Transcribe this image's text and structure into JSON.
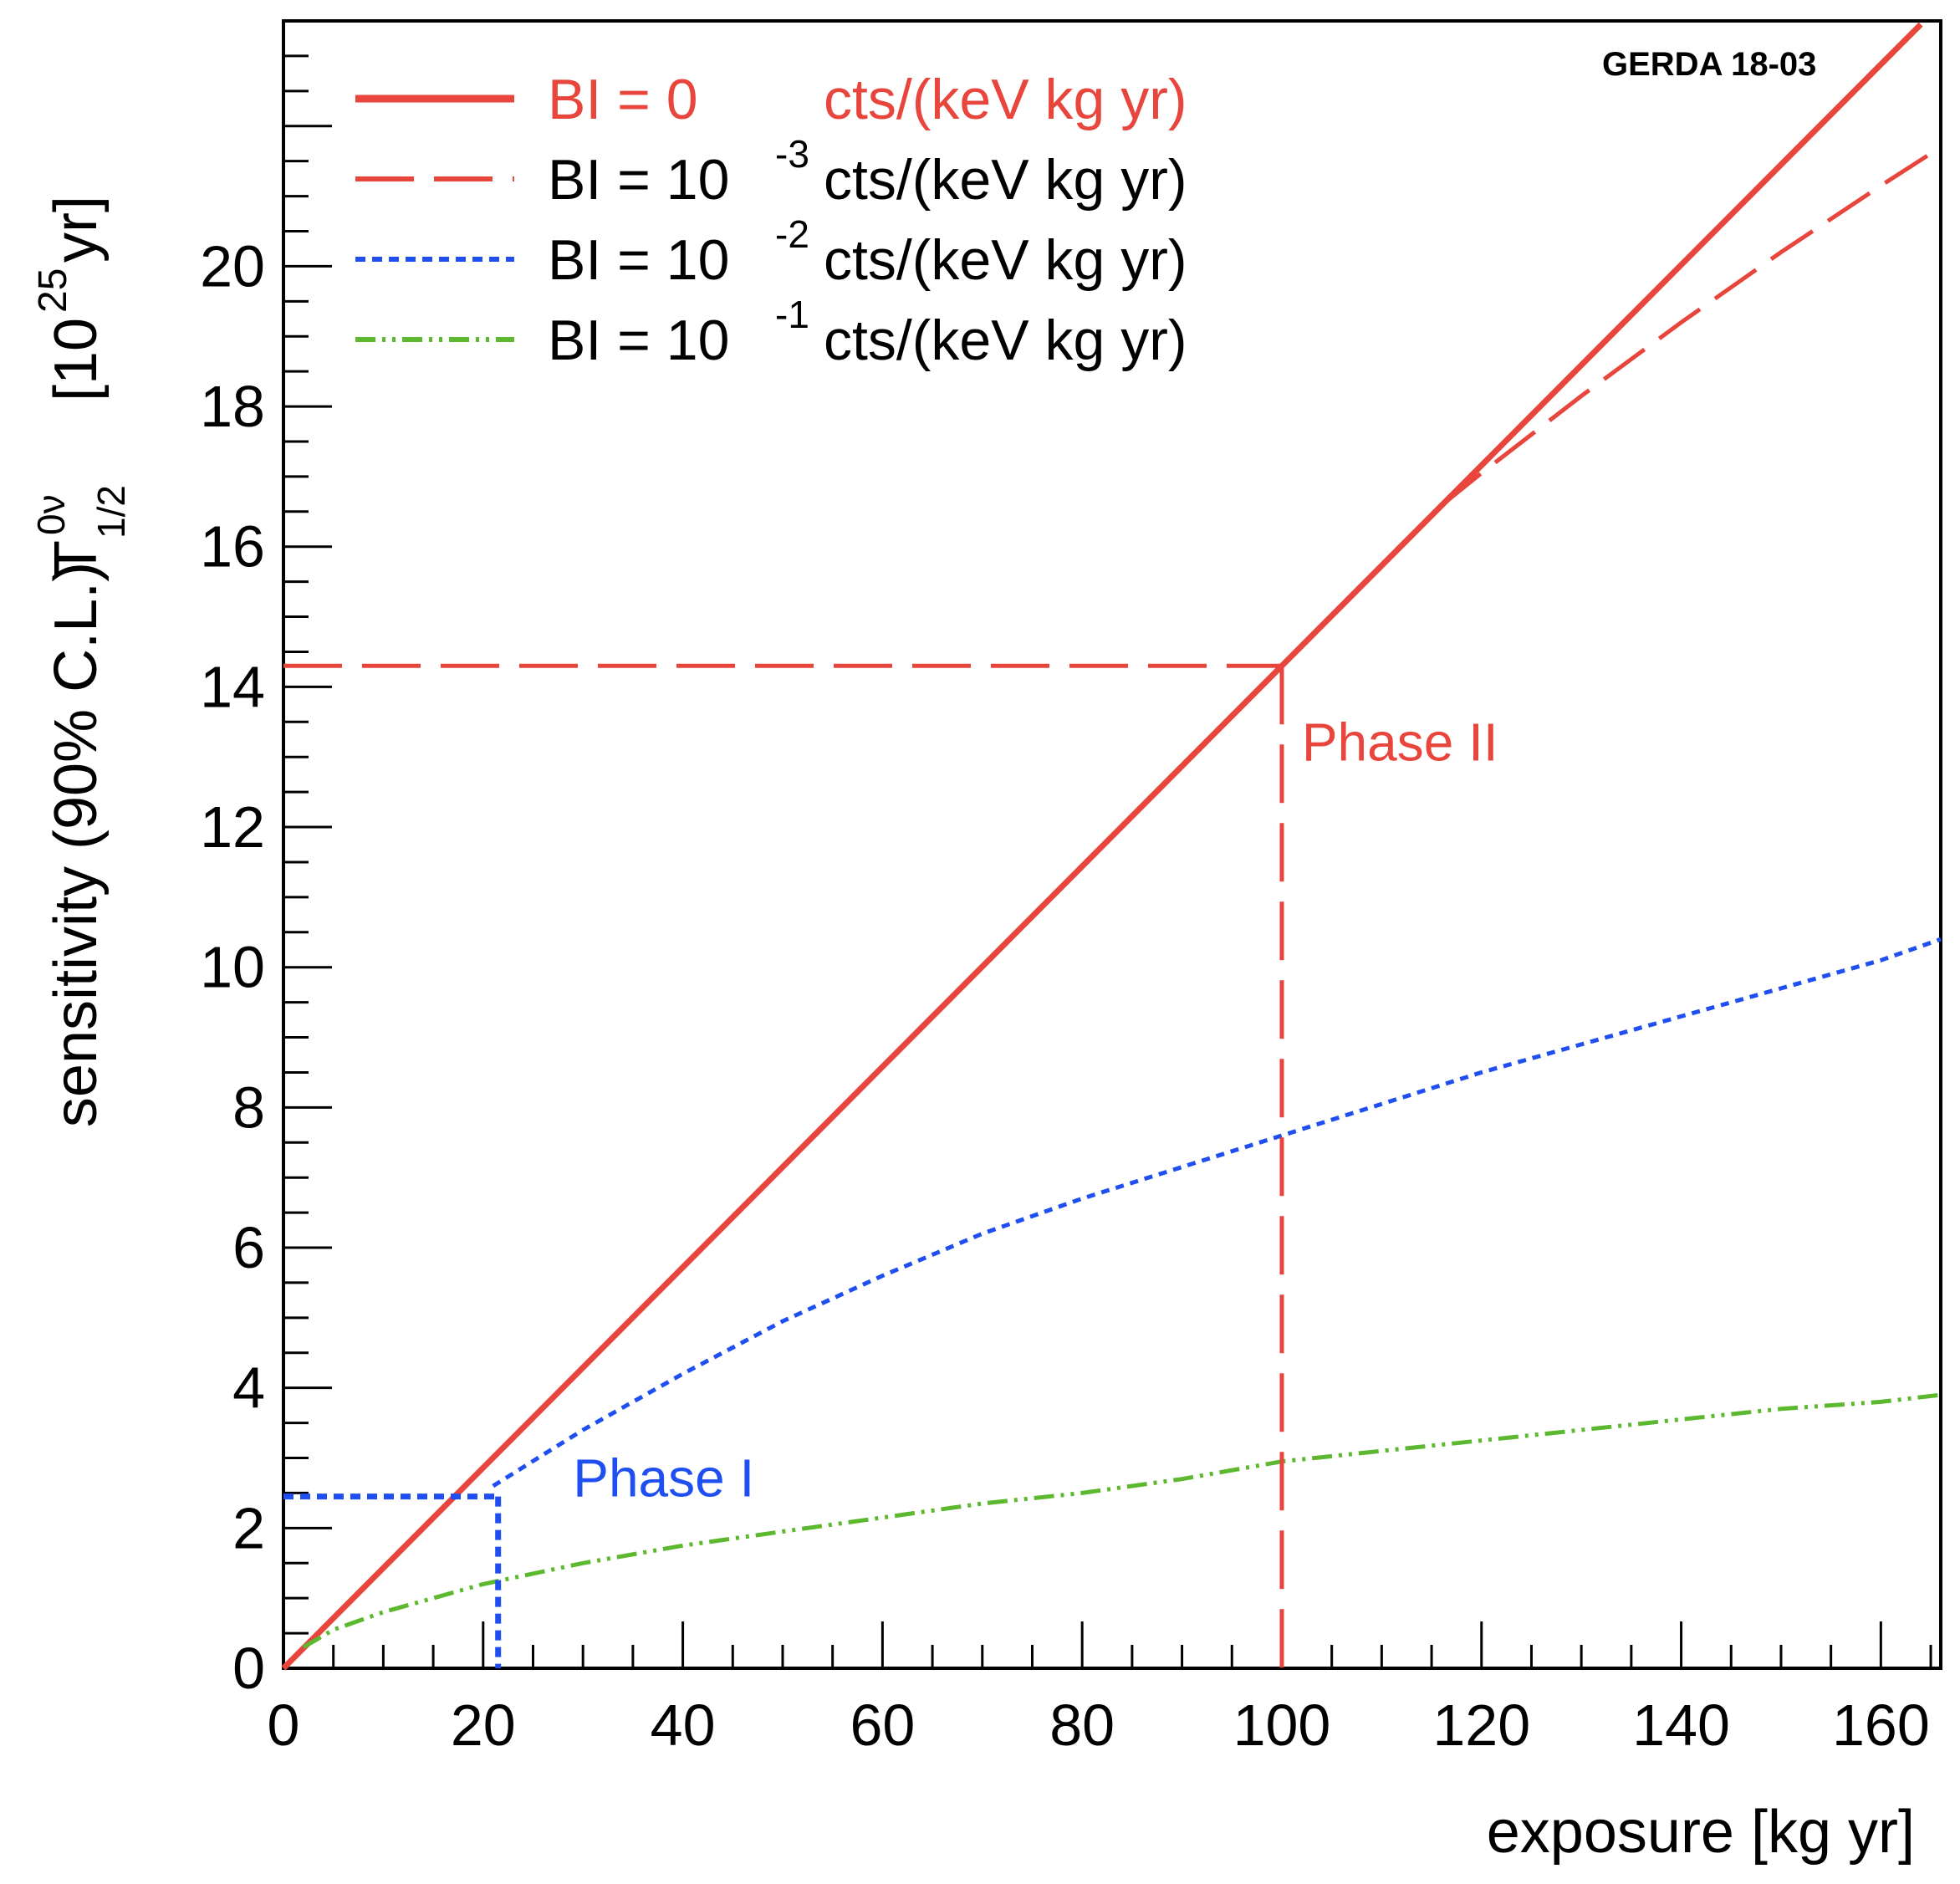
{
  "chart_data": {
    "type": "line",
    "tag": "GERDA 18-03",
    "xlabel": "exposure [kg yr]",
    "ylabel": {
      "main": "sensitivity (90% C.L.)",
      "symbol": "T",
      "superscript": "0ν",
      "subscript": "1/2",
      "unit": "[10",
      "unit_exp": "25",
      "unit_end": " yr]"
    },
    "xlim": [
      0,
      166
    ],
    "ylim": [
      0,
      23.5
    ],
    "x_ticks": [
      0,
      20,
      40,
      60,
      80,
      100,
      120,
      140,
      160
    ],
    "y_ticks": [
      0,
      2,
      4,
      6,
      8,
      10,
      12,
      14,
      16,
      18,
      20
    ],
    "x_tick_labels": [
      "0",
      "20",
      "40",
      "60",
      "80",
      "100",
      "120",
      "140",
      "160"
    ],
    "y_tick_labels": [
      "0",
      "2",
      "4",
      "6",
      "8",
      "10",
      "12",
      "14",
      "16",
      "18",
      "20"
    ],
    "series": [
      {
        "name": "BI = 0 cts/(keV kg yr)",
        "legend_prefix": "BI =   0",
        "legend_exp": "",
        "legend_suffix": "cts/(keV kg yr)",
        "color": "#e8453c",
        "style": "solid",
        "x": [
          0,
          20,
          40,
          60,
          80,
          100,
          120,
          140,
          160,
          164
        ],
        "values": [
          0,
          2.86,
          5.72,
          8.58,
          11.44,
          14.3,
          17.16,
          20.02,
          22.88,
          23.45
        ]
      },
      {
        "name": "BI = 10^-3 cts/(keV kg yr)",
        "legend_prefix": "BI = 10",
        "legend_exp": "-3",
        "legend_suffix": "cts/(keV kg yr)",
        "color": "#e8453c",
        "style": "dashed",
        "x": [
          116,
          120,
          130,
          140,
          150,
          160,
          166
        ],
        "values": [
          16.59,
          17.05,
          18.15,
          19.2,
          20.2,
          21.15,
          21.7
        ]
      },
      {
        "name": "BI = 10^-2 cts/(keV kg yr)",
        "legend_prefix": "BI = 10",
        "legend_exp": "-2",
        "legend_suffix": "cts/(keV kg yr)",
        "color": "#1f4ff0",
        "style": "dotted",
        "x": [
          21,
          30,
          40,
          50,
          60,
          70,
          80,
          90,
          100,
          110,
          120,
          130,
          140,
          150,
          160,
          166
        ],
        "values": [
          2.6,
          3.4,
          4.2,
          4.95,
          5.6,
          6.2,
          6.7,
          7.15,
          7.6,
          8.05,
          8.5,
          8.9,
          9.3,
          9.7,
          10.1,
          10.4
        ]
      },
      {
        "name": "BI = 10^-1 cts/(keV kg yr)",
        "legend_prefix": "BI = 10",
        "legend_exp": "-1",
        "legend_suffix": "cts/(keV kg yr)",
        "color": "#5cb82e",
        "style": "dash-dot-dot",
        "x": [
          2,
          5,
          10,
          20,
          30,
          40,
          50,
          60,
          70,
          80,
          90,
          100,
          110,
          120,
          130,
          140,
          150,
          160,
          166
        ],
        "values": [
          0.3,
          0.55,
          0.8,
          1.2,
          1.5,
          1.75,
          1.95,
          2.15,
          2.35,
          2.5,
          2.7,
          2.95,
          3.1,
          3.25,
          3.4,
          3.55,
          3.7,
          3.8,
          3.9
        ]
      }
    ],
    "annotations": [
      {
        "text": "Phase I",
        "x": 29,
        "y": 2.45,
        "color": "#1f4ff0",
        "marker_x": 21.5,
        "marker_y": 2.45,
        "style": "dotted"
      },
      {
        "text": "Phase II",
        "x": 102,
        "y": 12.95,
        "color": "#e8453c",
        "marker_x": 100,
        "marker_y": 14.3,
        "style": "dashed"
      }
    ]
  }
}
